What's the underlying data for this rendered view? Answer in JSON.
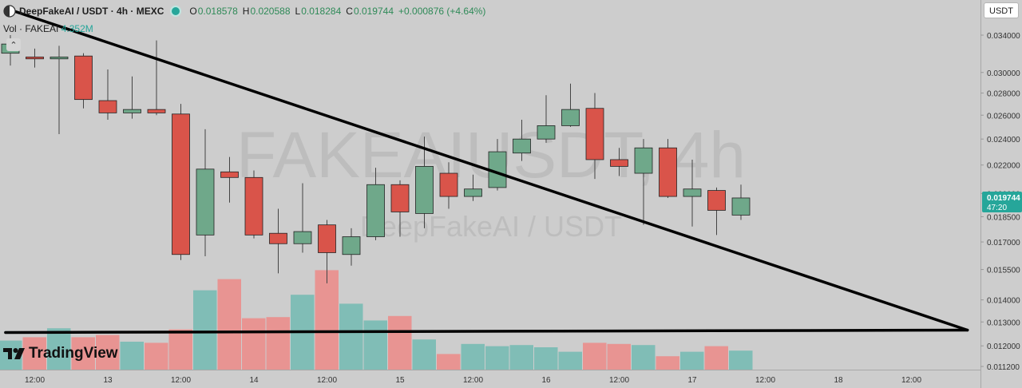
{
  "header": {
    "symbol": "DeepFakeAI / USDT · 4h · MEXC",
    "open_label": "O",
    "open": "0.018578",
    "high_label": "H",
    "high": "0.020588",
    "low_label": "L",
    "low": "0.018284",
    "close_label": "C",
    "close": "0.019744",
    "change": "+0.000876 (+4.64%)"
  },
  "volume_legend": {
    "label": "Vol · FAKEAI",
    "value": "4.352M"
  },
  "currency_button": "USDT",
  "branding": {
    "logo_text": "TradingView"
  },
  "watermark": {
    "line1": "FAKEAIUSDT, 4h",
    "line2": "DeepFakeAI / USDT"
  },
  "price_tag": {
    "price": "0.019744",
    "countdown": "47:20"
  },
  "colors": {
    "up": "#26a69a",
    "down": "#ef5350",
    "background": "#cdcdcd",
    "trendline": "#000000"
  },
  "chart_data": {
    "type": "candlestick",
    "title": "DeepFakeAI / USDT · 4h · MEXC",
    "y_axis": {
      "scale": "log",
      "range": [
        0.0112,
        0.0362
      ],
      "ticks": [
        "0.034000",
        "0.030000",
        "0.028000",
        "0.026000",
        "0.024000",
        "0.022000",
        "0.020000",
        "0.018500",
        "0.017000",
        "0.015500",
        "0.014000",
        "0.013000",
        "0.012000",
        "0.011200"
      ]
    },
    "x_axis": {
      "labels": [
        "12:00",
        "13",
        "12:00",
        "14",
        "12:00",
        "15",
        "12:00",
        "16",
        "12:00",
        "17",
        "12:00",
        "18",
        "12:00"
      ],
      "label_slots": [
        1,
        4,
        7,
        10,
        13,
        16,
        19,
        22,
        25,
        28,
        31,
        34,
        37
      ]
    },
    "candles": [
      {
        "o": 0.032,
        "h": 0.034,
        "l": 0.0307,
        "c": 0.033
      },
      {
        "o": 0.0316,
        "h": 0.0325,
        "l": 0.0305,
        "c": 0.0314
      },
      {
        "o": 0.0314,
        "h": 0.0328,
        "l": 0.0244,
        "c": 0.0316
      },
      {
        "o": 0.0317,
        "h": 0.032,
        "l": 0.0266,
        "c": 0.0274
      },
      {
        "o": 0.0273,
        "h": 0.0303,
        "l": 0.0256,
        "c": 0.0262
      },
      {
        "o": 0.0262,
        "h": 0.0296,
        "l": 0.0257,
        "c": 0.0265
      },
      {
        "o": 0.0265,
        "h": 0.0334,
        "l": 0.026,
        "c": 0.0262
      },
      {
        "o": 0.0261,
        "h": 0.027,
        "l": 0.016,
        "c": 0.0163
      },
      {
        "o": 0.0174,
        "h": 0.0248,
        "l": 0.0162,
        "c": 0.0217
      },
      {
        "o": 0.0215,
        "h": 0.0226,
        "l": 0.0194,
        "c": 0.0211
      },
      {
        "o": 0.0211,
        "h": 0.0216,
        "l": 0.0172,
        "c": 0.0174
      },
      {
        "o": 0.0175,
        "h": 0.019,
        "l": 0.0153,
        "c": 0.0169
      },
      {
        "o": 0.0169,
        "h": 0.0207,
        "l": 0.0164,
        "c": 0.0176
      },
      {
        "o": 0.018,
        "h": 0.0183,
        "l": 0.0148,
        "c": 0.0164
      },
      {
        "o": 0.0163,
        "h": 0.0178,
        "l": 0.0157,
        "c": 0.0173
      },
      {
        "o": 0.0173,
        "h": 0.0218,
        "l": 0.0171,
        "c": 0.0206
      },
      {
        "o": 0.0206,
        "h": 0.0209,
        "l": 0.0173,
        "c": 0.0188
      },
      {
        "o": 0.0187,
        "h": 0.0242,
        "l": 0.0178,
        "c": 0.0219
      },
      {
        "o": 0.0214,
        "h": 0.0222,
        "l": 0.019,
        "c": 0.0198
      },
      {
        "o": 0.0198,
        "h": 0.0213,
        "l": 0.0195,
        "c": 0.0203
      },
      {
        "o": 0.0204,
        "h": 0.024,
        "l": 0.0202,
        "c": 0.023
      },
      {
        "o": 0.0229,
        "h": 0.0256,
        "l": 0.0223,
        "c": 0.024
      },
      {
        "o": 0.024,
        "h": 0.0278,
        "l": 0.0237,
        "c": 0.0251
      },
      {
        "o": 0.0251,
        "h": 0.0289,
        "l": 0.025,
        "c": 0.0265
      },
      {
        "o": 0.0266,
        "h": 0.028,
        "l": 0.021,
        "c": 0.0224
      },
      {
        "o": 0.0224,
        "h": 0.0233,
        "l": 0.0212,
        "c": 0.0219
      },
      {
        "o": 0.0214,
        "h": 0.024,
        "l": 0.018,
        "c": 0.0233
      },
      {
        "o": 0.0233,
        "h": 0.024,
        "l": 0.0197,
        "c": 0.0198
      },
      {
        "o": 0.0198,
        "h": 0.0224,
        "l": 0.0179,
        "c": 0.0203
      },
      {
        "o": 0.0202,
        "h": 0.0204,
        "l": 0.0174,
        "c": 0.0189
      },
      {
        "o": 0.0186,
        "h": 0.0206,
        "l": 0.0183,
        "c": 0.0197
      }
    ],
    "volume": {
      "max": 100,
      "values": [
        26,
        29,
        37,
        29,
        31,
        25,
        24,
        36,
        71,
        81,
        46,
        47,
        67,
        89,
        59,
        44,
        48,
        27,
        14,
        23,
        21,
        22,
        20,
        16,
        24,
        23,
        22,
        12,
        16,
        21,
        17
      ]
    },
    "trendlines": [
      {
        "from": {
          "slot": 0,
          "price": 0.037
        },
        "to": {
          "slot": 39.3,
          "price": 0.01265
        }
      },
      {
        "from": {
          "slot": -0.2,
          "price": 0.01255
        },
        "to": {
          "slot": 39.3,
          "price": 0.01265
        }
      }
    ]
  }
}
